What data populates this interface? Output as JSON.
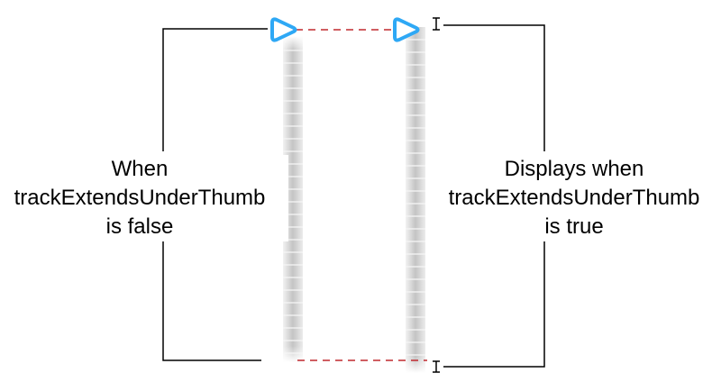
{
  "colors": {
    "background": "#ffffff",
    "bracket_line": "#000000",
    "guide_dash": "#c0282e",
    "thumb": "#2ea8f5",
    "track_light": "#eeeeee",
    "track_dark": "#bdbdbd",
    "tick": "#f4f4f4"
  },
  "icons": {
    "thumb": "slider-thumb-icon",
    "end_marker": "i-beam-marker-icon"
  },
  "captions": {
    "false_case": {
      "line1": "When",
      "line2": "trackExtendsUnderThumb",
      "line3": "is false"
    },
    "true_case": {
      "line1": "Displays when",
      "line2": "trackExtendsUnderThumb",
      "line3": "is true"
    }
  }
}
